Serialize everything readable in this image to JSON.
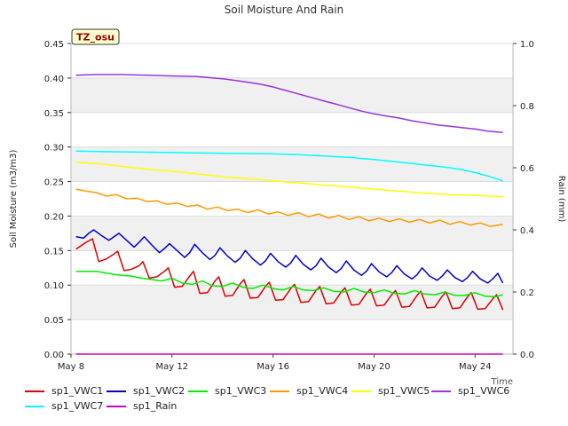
{
  "chart_data": {
    "type": "line",
    "title": "Soil Moisture And Rain",
    "site_label": "TZ_osu",
    "xlabel": "Time",
    "ylabel": "Soil Moisture (m3/m3)",
    "y2label": "Rain (mm)",
    "xlim": [
      0,
      17.5
    ],
    "ylim": [
      0,
      0.45
    ],
    "y2lim": [
      0,
      1.0
    ],
    "x_ticks": [
      {
        "value": 0,
        "label": "May 8"
      },
      {
        "value": 4,
        "label": "May 12"
      },
      {
        "value": 8,
        "label": "May 16"
      },
      {
        "value": 12,
        "label": "May 20"
      },
      {
        "value": 16,
        "label": "May 24"
      }
    ],
    "y_ticks": [
      "0.00",
      "0.05",
      "0.10",
      "0.15",
      "0.20",
      "0.25",
      "0.30",
      "0.35",
      "0.40",
      "0.45"
    ],
    "y2_ticks": [
      "0.0",
      "0.2",
      "0.4",
      "0.6",
      "0.8",
      "1.0"
    ],
    "series": [
      {
        "name": "sp1_VWC1",
        "color": "#dd0000",
        "x": [
          0.2,
          0.6,
          0.85,
          1.1,
          1.4,
          1.7,
          1.85,
          2.1,
          2.4,
          2.7,
          2.85,
          3.1,
          3.4,
          3.7,
          3.85,
          4.1,
          4.4,
          4.7,
          4.85,
          5.1,
          5.4,
          5.7,
          5.85,
          6.1,
          6.4,
          6.7,
          6.85,
          7.1,
          7.4,
          7.7,
          7.85,
          8.1,
          8.4,
          8.7,
          8.85,
          9.1,
          9.4,
          9.7,
          9.85,
          10.1,
          10.4,
          10.7,
          10.85,
          11.1,
          11.4,
          11.7,
          11.85,
          12.1,
          12.4,
          12.7,
          12.85,
          13.1,
          13.4,
          13.7,
          13.85,
          14.1,
          14.4,
          14.7,
          14.85,
          15.1,
          15.4,
          15.7,
          15.85,
          16.1,
          16.4,
          16.7,
          16.85,
          17.1
        ],
        "y": [
          0.152,
          0.162,
          0.167,
          0.134,
          0.138,
          0.145,
          0.149,
          0.121,
          0.123,
          0.128,
          0.134,
          0.11,
          0.112,
          0.12,
          0.125,
          0.097,
          0.098,
          0.113,
          0.12,
          0.088,
          0.089,
          0.106,
          0.112,
          0.084,
          0.085,
          0.102,
          0.108,
          0.081,
          0.082,
          0.098,
          0.104,
          0.078,
          0.079,
          0.095,
          0.101,
          0.075,
          0.076,
          0.092,
          0.098,
          0.073,
          0.074,
          0.09,
          0.096,
          0.071,
          0.072,
          0.088,
          0.094,
          0.07,
          0.071,
          0.086,
          0.092,
          0.068,
          0.069,
          0.085,
          0.091,
          0.067,
          0.068,
          0.084,
          0.09,
          0.066,
          0.067,
          0.083,
          0.089,
          0.065,
          0.066,
          0.08,
          0.086,
          0.064
        ]
      },
      {
        "name": "sp1_VWC2",
        "color": "#0000cc",
        "x": [
          0.2,
          0.5,
          0.7,
          0.9,
          1.2,
          1.5,
          1.7,
          1.9,
          2.2,
          2.5,
          2.7,
          2.9,
          3.2,
          3.5,
          3.7,
          3.9,
          4.2,
          4.5,
          4.7,
          4.9,
          5.2,
          5.5,
          5.7,
          5.9,
          6.2,
          6.5,
          6.7,
          6.9,
          7.2,
          7.5,
          7.7,
          7.9,
          8.2,
          8.5,
          8.7,
          8.9,
          9.2,
          9.5,
          9.7,
          9.9,
          10.2,
          10.5,
          10.7,
          10.9,
          11.2,
          11.5,
          11.7,
          11.9,
          12.2,
          12.5,
          12.7,
          12.9,
          13.2,
          13.5,
          13.7,
          13.9,
          14.2,
          14.5,
          14.7,
          14.9,
          15.2,
          15.5,
          15.7,
          15.9,
          16.2,
          16.5,
          16.7,
          16.9,
          17.1
        ],
        "y": [
          0.17,
          0.168,
          0.175,
          0.18,
          0.172,
          0.165,
          0.17,
          0.175,
          0.165,
          0.155,
          0.162,
          0.17,
          0.158,
          0.147,
          0.153,
          0.16,
          0.15,
          0.14,
          0.147,
          0.159,
          0.147,
          0.137,
          0.143,
          0.154,
          0.142,
          0.133,
          0.139,
          0.15,
          0.138,
          0.129,
          0.135,
          0.146,
          0.134,
          0.126,
          0.132,
          0.143,
          0.13,
          0.122,
          0.128,
          0.139,
          0.126,
          0.118,
          0.124,
          0.135,
          0.122,
          0.114,
          0.12,
          0.131,
          0.119,
          0.112,
          0.118,
          0.128,
          0.116,
          0.109,
          0.115,
          0.125,
          0.113,
          0.107,
          0.113,
          0.122,
          0.111,
          0.105,
          0.111,
          0.12,
          0.109,
          0.103,
          0.109,
          0.117,
          0.103
        ]
      },
      {
        "name": "sp1_VWC3",
        "color": "#00ee00",
        "x": [
          0.2,
          1.0,
          1.8,
          2.4,
          2.8,
          3.2,
          3.6,
          4.0,
          4.4,
          4.8,
          5.2,
          5.6,
          6.0,
          6.4,
          6.8,
          7.2,
          7.6,
          8.0,
          8.4,
          8.8,
          9.2,
          9.6,
          10.0,
          10.4,
          10.8,
          11.2,
          11.6,
          12.0,
          12.4,
          12.8,
          13.2,
          13.6,
          14.0,
          14.4,
          14.8,
          15.2,
          15.6,
          16.0,
          16.4,
          16.8,
          17.1
        ],
        "y": [
          0.12,
          0.12,
          0.115,
          0.113,
          0.11,
          0.108,
          0.106,
          0.11,
          0.103,
          0.101,
          0.106,
          0.099,
          0.098,
          0.103,
          0.097,
          0.095,
          0.1,
          0.095,
          0.093,
          0.098,
          0.093,
          0.092,
          0.096,
          0.091,
          0.09,
          0.095,
          0.09,
          0.089,
          0.093,
          0.088,
          0.087,
          0.092,
          0.087,
          0.086,
          0.09,
          0.085,
          0.085,
          0.089,
          0.084,
          0.083,
          0.086
        ]
      },
      {
        "name": "sp1_VWC4",
        "color": "#ff9900",
        "x": [
          0.2,
          0.6,
          1.0,
          1.4,
          1.8,
          2.2,
          2.6,
          3.0,
          3.4,
          3.8,
          4.2,
          4.6,
          5.0,
          5.4,
          5.8,
          6.2,
          6.6,
          7.0,
          7.4,
          7.8,
          8.2,
          8.6,
          9.0,
          9.4,
          9.8,
          10.2,
          10.6,
          11.0,
          11.4,
          11.8,
          12.2,
          12.6,
          13.0,
          13.4,
          13.8,
          14.2,
          14.6,
          15.0,
          15.4,
          15.8,
          16.2,
          16.6,
          17.1
        ],
        "y": [
          0.239,
          0.236,
          0.234,
          0.229,
          0.231,
          0.225,
          0.226,
          0.221,
          0.222,
          0.217,
          0.219,
          0.214,
          0.216,
          0.21,
          0.213,
          0.208,
          0.21,
          0.205,
          0.209,
          0.203,
          0.206,
          0.201,
          0.205,
          0.199,
          0.203,
          0.197,
          0.201,
          0.195,
          0.199,
          0.193,
          0.197,
          0.192,
          0.196,
          0.191,
          0.195,
          0.19,
          0.194,
          0.188,
          0.192,
          0.187,
          0.19,
          0.185,
          0.188
        ]
      },
      {
        "name": "sp1_VWC5",
        "color": "#ffff00",
        "x": [
          0.2,
          1.0,
          2.0,
          3.0,
          4.0,
          5.0,
          6.0,
          7.0,
          8.0,
          9.0,
          10.0,
          11.0,
          12.0,
          13.0,
          14.0,
          15.0,
          16.0,
          17.1
        ],
        "y": [
          0.278,
          0.276,
          0.272,
          0.268,
          0.265,
          0.261,
          0.257,
          0.254,
          0.251,
          0.248,
          0.245,
          0.242,
          0.239,
          0.236,
          0.233,
          0.231,
          0.23,
          0.228
        ]
      },
      {
        "name": "sp1_VWC6",
        "color": "#9933dd",
        "x": [
          0.2,
          1.0,
          2.0,
          3.0,
          4.0,
          5.0,
          6.0,
          7.0,
          7.5,
          8.0,
          8.5,
          9.0,
          9.5,
          10.0,
          10.5,
          11.0,
          11.5,
          12.0,
          12.5,
          13.0,
          13.5,
          14.0,
          14.5,
          15.0,
          15.5,
          16.0,
          16.5,
          17.1
        ],
        "y": [
          0.404,
          0.405,
          0.405,
          0.404,
          0.403,
          0.402,
          0.399,
          0.394,
          0.391,
          0.387,
          0.382,
          0.377,
          0.372,
          0.367,
          0.362,
          0.357,
          0.352,
          0.348,
          0.345,
          0.342,
          0.338,
          0.335,
          0.332,
          0.33,
          0.328,
          0.326,
          0.323,
          0.321
        ]
      },
      {
        "name": "sp1_VWC7",
        "color": "#00ffff",
        "x": [
          0.2,
          2.0,
          4.0,
          6.0,
          8.0,
          9.0,
          10.0,
          11.0,
          12.0,
          12.5,
          13.0,
          13.5,
          14.0,
          14.5,
          15.0,
          15.5,
          16.0,
          16.5,
          17.1
        ],
        "y": [
          0.294,
          0.293,
          0.292,
          0.291,
          0.29,
          0.289,
          0.287,
          0.285,
          0.282,
          0.28,
          0.278,
          0.276,
          0.274,
          0.272,
          0.27,
          0.267,
          0.263,
          0.258,
          0.251
        ]
      },
      {
        "name": "sp1_Rain",
        "color": "#cc00cc",
        "x": [
          0.2,
          17.1
        ],
        "y": [
          0.0,
          0.0
        ]
      }
    ]
  }
}
